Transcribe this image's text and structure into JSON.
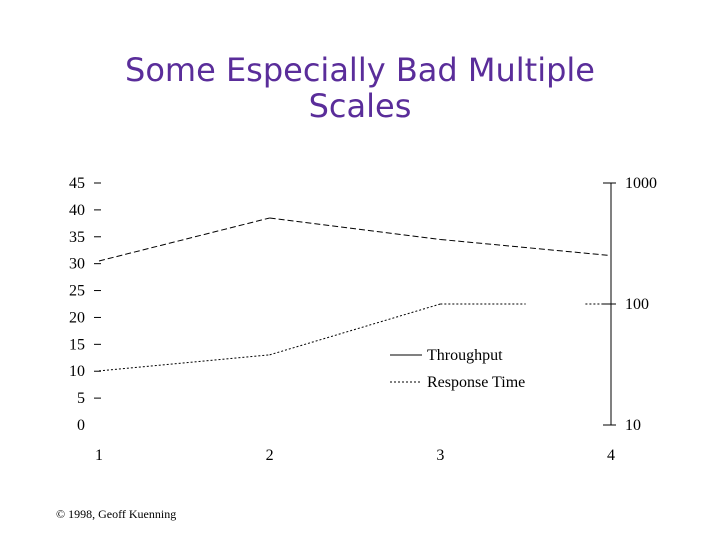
{
  "slide": {
    "title_line1": "Some Especially Bad Multiple",
    "title_line2": "Scales",
    "footer": "© 1998, Geoff Kuenning",
    "title_color": "#5a2d9a"
  },
  "chart_data": {
    "type": "line",
    "x": [
      1,
      2,
      3,
      4
    ],
    "x_ticks": [
      "1",
      "2",
      "3",
      "4"
    ],
    "y_left": {
      "ticks": [
        "0",
        "5",
        "10",
        "15",
        "20",
        "25",
        "30",
        "35",
        "40",
        "45"
      ],
      "range": [
        0,
        45
      ]
    },
    "y_right": {
      "ticks": [
        "10",
        "100",
        "1000"
      ],
      "range": [
        10,
        1000
      ],
      "scale": "log"
    },
    "series": [
      {
        "name": "Throughput",
        "axis": "left",
        "style": "dashed",
        "values": [
          30.5,
          38.5,
          34.5,
          31.5
        ]
      },
      {
        "name": "Response Time",
        "axis": "right",
        "style": "dotted",
        "values": [
          28,
          38,
          100,
          100
        ],
        "missing_segment": [
          3.5,
          3.85
        ]
      }
    ],
    "legend_position": "center-right",
    "grid": false
  }
}
